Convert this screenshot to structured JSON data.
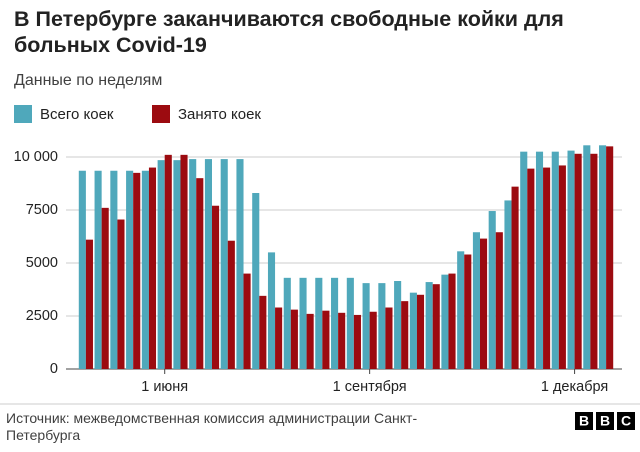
{
  "chart_data": {
    "type": "bar",
    "title": "В Петербурге заканчиваются свободные койки для больных Covid-19",
    "subtitle": "Данные по неделям",
    "source": "Источник: межведомственная комиссия администрации Санкт-Петербурга",
    "logo": "BBC",
    "categories": [
      null,
      null,
      null,
      null,
      null,
      "1 июня",
      null,
      null,
      null,
      null,
      null,
      null,
      null,
      null,
      null,
      null,
      null,
      null,
      "1 сентября",
      null,
      null,
      null,
      null,
      null,
      null,
      null,
      null,
      null,
      null,
      null,
      null,
      "1 декабря",
      null,
      null
    ],
    "series": [
      {
        "name": "Всего коек",
        "color": "#4fa8bb",
        "values": [
          9350,
          9350,
          9350,
          9350,
          9350,
          9850,
          9850,
          9900,
          9900,
          9900,
          9900,
          8300,
          5500,
          4300,
          4300,
          4300,
          4300,
          4300,
          4050,
          4050,
          4150,
          3600,
          4100,
          4450,
          5550,
          6450,
          7450,
          7950,
          10250,
          10250,
          10250,
          10300,
          10550,
          10550
        ]
      },
      {
        "name": "Занято коек",
        "color": "#9c0b10",
        "values": [
          6100,
          7600,
          7050,
          9250,
          9500,
          10100,
          10100,
          9000,
          7700,
          6050,
          4500,
          3450,
          2900,
          2800,
          2600,
          2750,
          2650,
          2550,
          2700,
          2900,
          3200,
          3500,
          4000,
          4500,
          5400,
          6150,
          6450,
          8600,
          9450,
          9500,
          9600,
          10150,
          10150,
          10500
        ]
      }
    ],
    "ylim": [
      0,
      10800
    ],
    "yticks": [
      0,
      2500,
      5000,
      7500,
      {
        "value": 10000,
        "label": "10 000"
      }
    ],
    "grid": true
  }
}
